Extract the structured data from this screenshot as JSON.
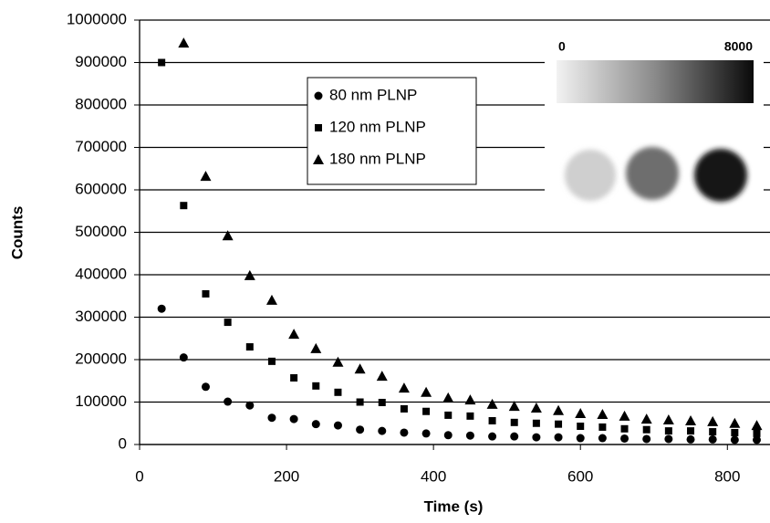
{
  "chart_data": {
    "type": "scatter",
    "xlabel": "Time (s)",
    "ylabel": "Counts",
    "xlim": [
      0,
      858
    ],
    "ylim": [
      0,
      1000000
    ],
    "xticks": [
      0,
      200,
      400,
      600,
      800
    ],
    "yticks": [
      0,
      100000,
      200000,
      300000,
      400000,
      500000,
      600000,
      700000,
      800000,
      900000,
      1000000
    ],
    "grid": true,
    "legend": "upper center",
    "colorbar_ticks": [
      0,
      8000
    ],
    "series": [
      {
        "name": "80 nm PLNP",
        "color": "#000000",
        "marker": "circle",
        "x": [
          30,
          60,
          90,
          120,
          150,
          180,
          210,
          240,
          270,
          300,
          330,
          360,
          390,
          420,
          450,
          480,
          510,
          540,
          570,
          600,
          630,
          660,
          690,
          720,
          750,
          780,
          810,
          840
        ],
        "values": [
          320000,
          205000,
          136000,
          101000,
          92000,
          63000,
          60000,
          48000,
          45000,
          35000,
          32000,
          28000,
          26000,
          22000,
          21000,
          19000,
          19000,
          17000,
          17000,
          15000,
          15000,
          14000,
          13000,
          13000,
          12000,
          12000,
          11000,
          11000
        ]
      },
      {
        "name": "120 nm PLNP",
        "color": "#000000",
        "marker": "square",
        "x": [
          30,
          60,
          90,
          120,
          150,
          180,
          210,
          240,
          270,
          300,
          330,
          360,
          390,
          420,
          450,
          480,
          510,
          540,
          570,
          600,
          630,
          660,
          690,
          720,
          750,
          780,
          810,
          840
        ],
        "values": [
          900000,
          563000,
          355000,
          288000,
          230000,
          196000,
          157000,
          138000,
          123000,
          100000,
          99000,
          84000,
          78000,
          69000,
          67000,
          56000,
          52000,
          50000,
          48000,
          43000,
          41000,
          37000,
          35000,
          32000,
          32000,
          30000,
          28000,
          26000
        ]
      },
      {
        "name": "180 nm PLNP",
        "color": "#000000",
        "marker": "triangle",
        "x": [
          60,
          90,
          120,
          150,
          180,
          210,
          240,
          270,
          300,
          330,
          360,
          390,
          420,
          450,
          480,
          510,
          540,
          570,
          600,
          630,
          660,
          690,
          720,
          750,
          780,
          810,
          840
        ],
        "values": [
          946000,
          632000,
          492000,
          398000,
          340000,
          260000,
          226000,
          194000,
          178000,
          161000,
          133000,
          123000,
          110000,
          105000,
          95000,
          90000,
          86000,
          80000,
          73000,
          71000,
          67000,
          60000,
          58000,
          56000,
          54000,
          50000,
          45000
        ]
      }
    ]
  }
}
